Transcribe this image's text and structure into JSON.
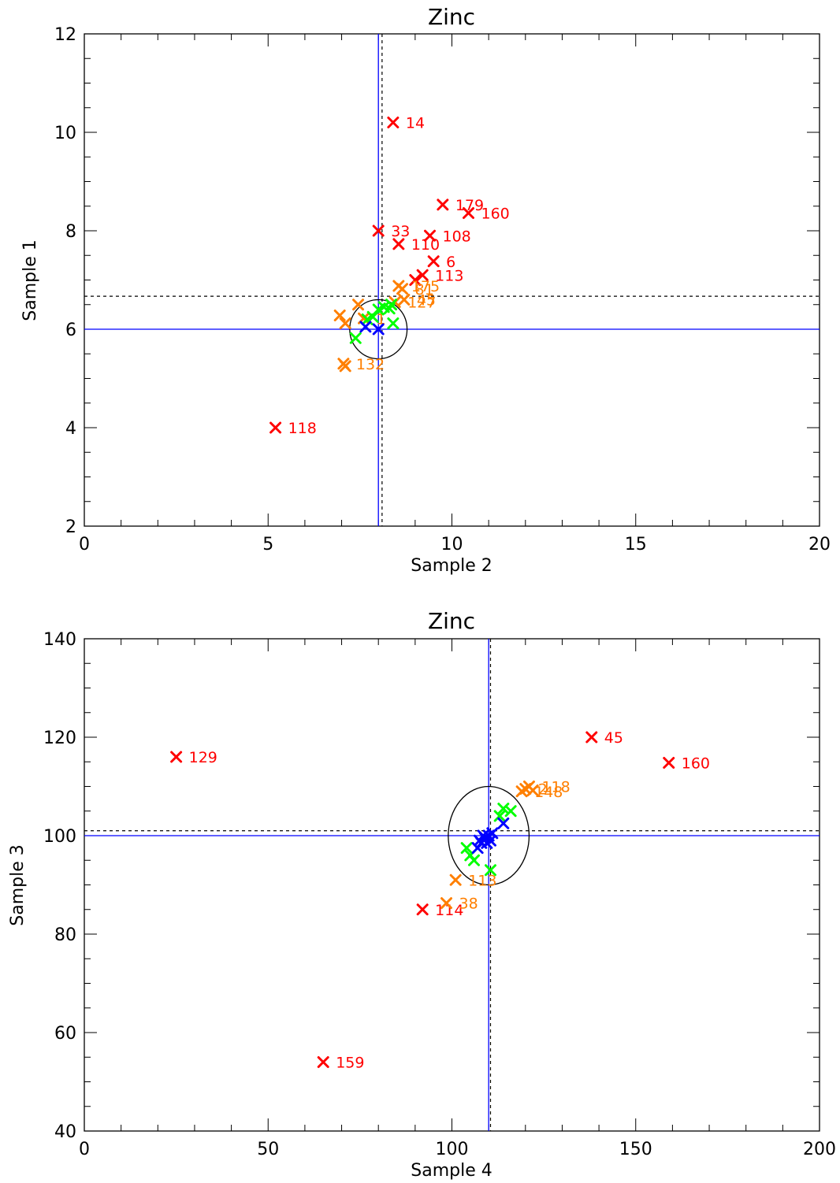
{
  "colors": {
    "red": "#ff0000",
    "orange": "#ff7f00",
    "green": "#00ff00",
    "blue": "#0000ff",
    "ref_line": "#0000ff",
    "dashed_line": "#000000"
  },
  "chart_data": [
    {
      "type": "scatter",
      "title": "Zinc",
      "xlabel": "Sample 2",
      "ylabel": "Sample 1",
      "xlim": [
        0,
        20
      ],
      "ylim": [
        2,
        12
      ],
      "xticks": [
        "0",
        "5",
        "10",
        "15",
        "20"
      ],
      "yticks": [
        "2",
        "4",
        "6",
        "8",
        "10",
        "12"
      ],
      "ref_x": 8.0,
      "ref_y": 6.0,
      "median_x": 8.1,
      "median_y": 6.67,
      "ellipse": {
        "cx": 8.0,
        "cy": 6.0,
        "rx": 0.78,
        "ry": 0.6
      },
      "series": [
        {
          "color": "red",
          "points": [
            {
              "x": 8.4,
              "y": 10.2,
              "label": "14"
            },
            {
              "x": 9.75,
              "y": 8.53,
              "label": "179"
            },
            {
              "x": 10.45,
              "y": 8.36,
              "label": "160"
            },
            {
              "x": 8.0,
              "y": 8.0,
              "label": "33"
            },
            {
              "x": 9.4,
              "y": 7.9,
              "label": "108"
            },
            {
              "x": 8.55,
              "y": 7.73,
              "label": "110"
            },
            {
              "x": 9.5,
              "y": 7.38,
              "label": "6"
            },
            {
              "x": 9.2,
              "y": 7.1,
              "label": "113"
            },
            {
              "x": 9.0,
              "y": 7.0,
              "label": ""
            },
            {
              "x": 5.2,
              "y": 4.0,
              "label": "118"
            }
          ]
        },
        {
          "color": "orange",
          "points": [
            {
              "x": 8.55,
              "y": 6.88,
              "label": "175"
            },
            {
              "x": 8.65,
              "y": 6.82,
              "label": "81"
            },
            {
              "x": 8.7,
              "y": 6.6,
              "label": "45"
            },
            {
              "x": 8.45,
              "y": 6.55,
              "label": "127"
            },
            {
              "x": 7.45,
              "y": 6.5,
              "label": ""
            },
            {
              "x": 6.95,
              "y": 6.28,
              "label": ""
            },
            {
              "x": 7.1,
              "y": 6.12,
              "label": ""
            },
            {
              "x": 7.6,
              "y": 6.22,
              "label": "1"
            },
            {
              "x": 7.05,
              "y": 5.3,
              "label": "132"
            },
            {
              "x": 7.1,
              "y": 5.25,
              "label": ""
            }
          ]
        },
        {
          "color": "green",
          "points": [
            {
              "x": 8.0,
              "y": 6.4,
              "label": ""
            },
            {
              "x": 8.15,
              "y": 6.45,
              "label": ""
            },
            {
              "x": 8.3,
              "y": 6.42,
              "label": ""
            },
            {
              "x": 8.35,
              "y": 6.5,
              "label": ""
            },
            {
              "x": 7.85,
              "y": 6.25,
              "label": ""
            },
            {
              "x": 7.7,
              "y": 6.2,
              "label": ""
            },
            {
              "x": 8.4,
              "y": 6.12,
              "label": ""
            },
            {
              "x": 7.38,
              "y": 5.82,
              "label": ""
            }
          ]
        },
        {
          "color": "blue",
          "points": [
            {
              "x": 7.65,
              "y": 6.05,
              "label": ""
            },
            {
              "x": 8.0,
              "y": 6.0,
              "label": ""
            }
          ]
        }
      ]
    },
    {
      "type": "scatter",
      "title": "Zinc",
      "xlabel": "Sample 4",
      "ylabel": "Sample 3",
      "xlim": [
        0,
        200
      ],
      "ylim": [
        40,
        140
      ],
      "xticks": [
        "0",
        "50",
        "100",
        "150",
        "200"
      ],
      "yticks": [
        "40",
        "60",
        "80",
        "100",
        "120",
        "140"
      ],
      "ref_x": 110.0,
      "ref_y": 100.0,
      "median_x": 110.5,
      "median_y": 101.0,
      "ellipse": {
        "cx": 110.0,
        "cy": 100.0,
        "rx": 11.0,
        "ry": 10.0
      },
      "series": [
        {
          "color": "red",
          "points": [
            {
              "x": 25.0,
              "y": 116.0,
              "label": "129"
            },
            {
              "x": 138.0,
              "y": 120.0,
              "label": "45"
            },
            {
              "x": 159.0,
              "y": 114.8,
              "label": "160"
            },
            {
              "x": 92.0,
              "y": 85.0,
              "label": "114"
            },
            {
              "x": 65.0,
              "y": 54.0,
              "label": "159"
            }
          ]
        },
        {
          "color": "orange",
          "points": [
            {
              "x": 121.0,
              "y": 110.0,
              "label": "118"
            },
            {
              "x": 120.0,
              "y": 109.5,
              "label": "2"
            },
            {
              "x": 119.0,
              "y": 109.0,
              "label": "148"
            },
            {
              "x": 122.0,
              "y": 109.2,
              "label": ""
            },
            {
              "x": 101.0,
              "y": 91.0,
              "label": "113"
            },
            {
              "x": 98.5,
              "y": 86.3,
              "label": "38"
            }
          ]
        },
        {
          "color": "green",
          "points": [
            {
              "x": 114.0,
              "y": 105.5,
              "label": ""
            },
            {
              "x": 116.0,
              "y": 105.0,
              "label": ""
            },
            {
              "x": 113.0,
              "y": 104.0,
              "label": ""
            },
            {
              "x": 104.0,
              "y": 97.5,
              "label": ""
            },
            {
              "x": 105.0,
              "y": 96.0,
              "label": ""
            },
            {
              "x": 106.0,
              "y": 95.0,
              "label": ""
            },
            {
              "x": 110.5,
              "y": 93.0,
              "label": ""
            }
          ]
        },
        {
          "color": "blue",
          "points": [
            {
              "x": 107.0,
              "y": 97.5,
              "label": ""
            },
            {
              "x": 108.0,
              "y": 98.5,
              "label": ""
            },
            {
              "x": 109.0,
              "y": 99.5,
              "label": ""
            },
            {
              "x": 110.0,
              "y": 100.0,
              "label": ""
            },
            {
              "x": 111.0,
              "y": 100.5,
              "label": ""
            },
            {
              "x": 108.5,
              "y": 100.0,
              "label": ""
            },
            {
              "x": 109.5,
              "y": 98.5,
              "label": ""
            },
            {
              "x": 107.5,
              "y": 99.0,
              "label": ""
            },
            {
              "x": 110.5,
              "y": 99.0,
              "label": ""
            },
            {
              "x": 114.0,
              "y": 102.5,
              "label": ""
            }
          ]
        }
      ]
    }
  ]
}
